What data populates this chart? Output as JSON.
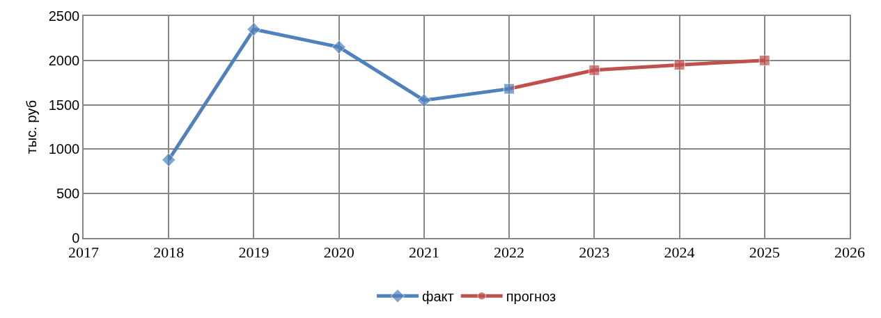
{
  "chart_data": {
    "type": "line",
    "ylabel": "тыс. руб",
    "xlim": [
      2017,
      2026
    ],
    "xticks": [
      2017,
      2018,
      2019,
      2020,
      2021,
      2022,
      2023,
      2024,
      2025,
      2026
    ],
    "ylim": [
      0,
      2500
    ],
    "yticks": [
      0,
      500,
      1000,
      1500,
      2000,
      2500
    ],
    "grid": true,
    "legend": "bottom",
    "series": [
      {
        "name": "прогноз",
        "color": "#c0504d",
        "x": [
          2022,
          2023,
          2024,
          2025
        ],
        "values": [
          1680,
          1890,
          1950,
          2000
        ],
        "marker": [
          "none",
          "square",
          "square",
          "square"
        ]
      },
      {
        "name": "факт",
        "color": "#4f81bd",
        "x": [
          2018,
          2019,
          2020,
          2021,
          2022
        ],
        "values": [
          880,
          2350,
          2150,
          1550,
          1680
        ],
        "marker": [
          "diamond",
          "diamond",
          "diamond",
          "diamond",
          "square"
        ]
      }
    ]
  }
}
